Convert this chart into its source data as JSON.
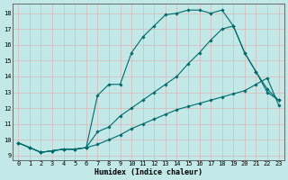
{
  "xlabel": "Humidex (Indice chaleur)",
  "background_color": "#c2e8e8",
  "grid_color": "#b0d0d0",
  "line_color": "#006b6b",
  "xlim": [
    -0.5,
    23.5
  ],
  "ylim": [
    8.7,
    18.6
  ],
  "yticks": [
    9,
    10,
    11,
    12,
    13,
    14,
    15,
    16,
    17,
    18
  ],
  "xticks": [
    0,
    1,
    2,
    3,
    4,
    5,
    6,
    7,
    8,
    9,
    10,
    11,
    12,
    13,
    14,
    15,
    16,
    17,
    18,
    19,
    20,
    21,
    22,
    23
  ],
  "line1_x": [
    0,
    1,
    2,
    3,
    4,
    5,
    6,
    7,
    8,
    9,
    10,
    11,
    12,
    13,
    14,
    15,
    16,
    17,
    18,
    19,
    20,
    21,
    22,
    23
  ],
  "line1_y": [
    9.8,
    9.5,
    9.2,
    9.3,
    9.4,
    9.4,
    9.5,
    12.8,
    13.5,
    13.5,
    15.5,
    16.5,
    17.2,
    17.9,
    18.0,
    18.2,
    18.2,
    18.0,
    18.2,
    17.2,
    15.5,
    14.3,
    13.2,
    12.5
  ],
  "line2_x": [
    0,
    1,
    2,
    3,
    4,
    5,
    6,
    7,
    8,
    9,
    10,
    11,
    12,
    13,
    14,
    15,
    16,
    17,
    18,
    19,
    20,
    21,
    22,
    23
  ],
  "line2_y": [
    9.8,
    9.5,
    9.2,
    9.3,
    9.4,
    9.4,
    9.5,
    10.5,
    10.8,
    11.5,
    12.0,
    12.5,
    13.0,
    13.5,
    14.0,
    14.8,
    15.5,
    16.3,
    17.0,
    17.2,
    15.5,
    14.3,
    13.0,
    12.5
  ],
  "line3_x": [
    0,
    1,
    2,
    3,
    4,
    5,
    6,
    7,
    8,
    9,
    10,
    11,
    12,
    13,
    14,
    15,
    16,
    17,
    18,
    19,
    20,
    21,
    22,
    23
  ],
  "line3_y": [
    9.8,
    9.5,
    9.2,
    9.3,
    9.4,
    9.4,
    9.5,
    9.7,
    10.0,
    10.3,
    10.7,
    11.0,
    11.3,
    11.6,
    11.9,
    12.1,
    12.3,
    12.5,
    12.7,
    12.9,
    13.1,
    13.5,
    13.9,
    12.2
  ]
}
